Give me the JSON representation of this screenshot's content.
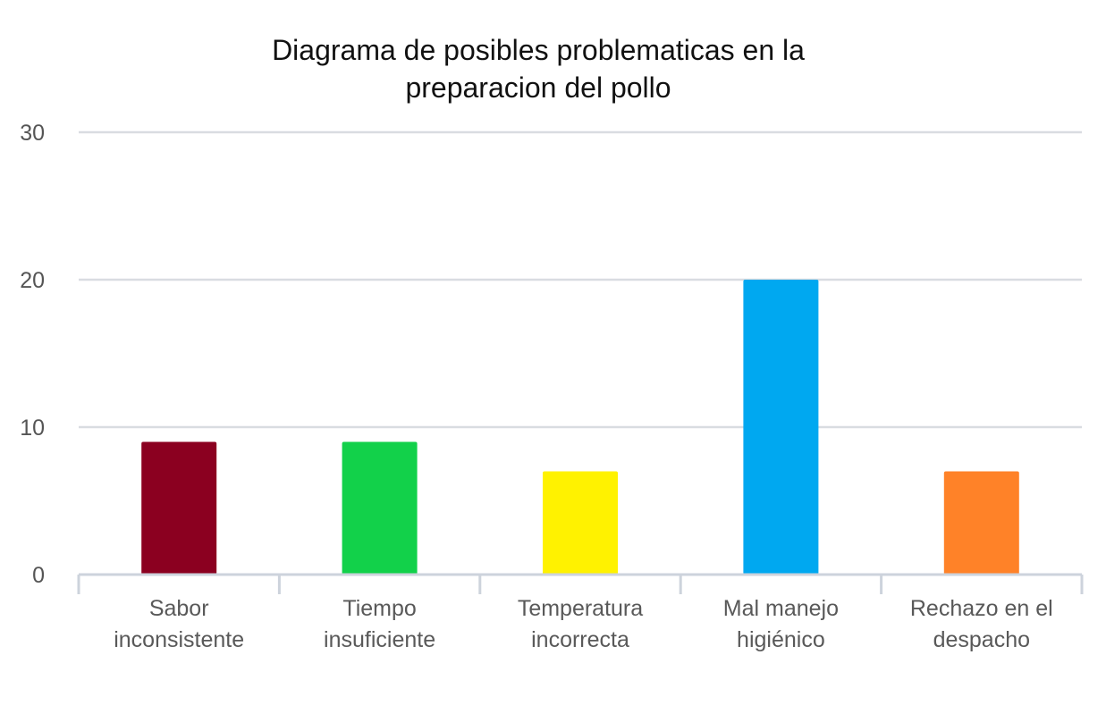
{
  "chart_data": {
    "type": "bar",
    "title_lines": [
      "Diagrama de posibles problematicas en la",
      "preparacion del pollo"
    ],
    "categories": [
      [
        "Sabor",
        "inconsistente"
      ],
      [
        "Tiempo",
        "insuficiente"
      ],
      [
        "Temperatura",
        "incorrecta"
      ],
      [
        "Mal manejo",
        "higiénico"
      ],
      [
        "Rechazo en el",
        "despacho"
      ]
    ],
    "values": [
      9,
      9,
      7,
      20,
      7
    ],
    "colors": [
      "#8b0020",
      "#12d14a",
      "#fff200",
      "#00a8f0",
      "#ff8228"
    ],
    "ylim": [
      0,
      30
    ],
    "yticks": [
      "0",
      "10",
      "20",
      "30"
    ],
    "grid": true,
    "xlabel": "",
    "ylabel": ""
  }
}
